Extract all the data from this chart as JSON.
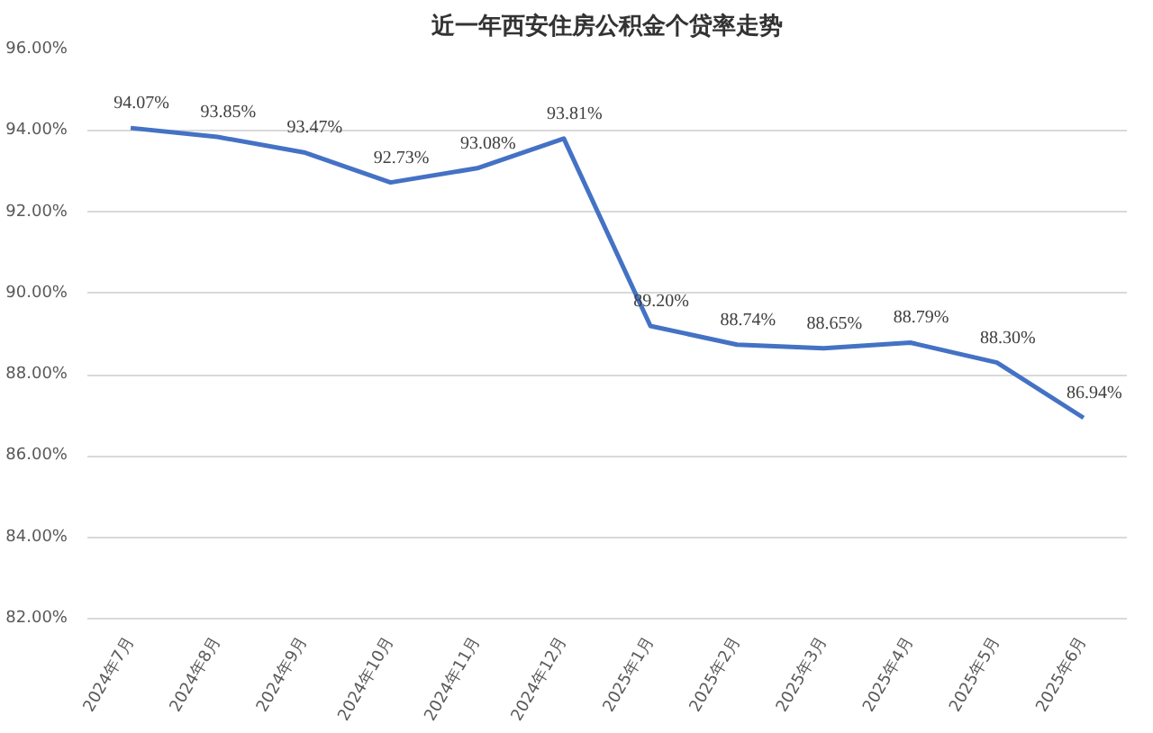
{
  "chart_data": {
    "type": "line",
    "title": "近一年西安住房公积金个贷率走势",
    "categories": [
      "2024年7月",
      "2024年8月",
      "2024年9月",
      "2024年10月",
      "2024年11月",
      "2024年12月",
      "2025年1月",
      "2025年2月",
      "2025年3月",
      "2025年4月",
      "2025年5月",
      "2025年6月"
    ],
    "series": [
      {
        "color": "#4472c4",
        "values": [
          94.07,
          93.85,
          93.47,
          92.73,
          93.08,
          93.81,
          89.2,
          88.74,
          88.65,
          88.79,
          88.3,
          86.94
        ],
        "value_labels": [
          "94.07%",
          "93.85%",
          "93.47%",
          "92.73%",
          "93.08%",
          "93.81%",
          "89.20%",
          "88.74%",
          "88.65%",
          "88.79%",
          "88.30%",
          "86.94%"
        ]
      }
    ],
    "ylim": [
      82,
      96
    ],
    "yticks": [
      {
        "value": 82,
        "label": "82.00%"
      },
      {
        "value": 84,
        "label": "84.00%"
      },
      {
        "value": 86,
        "label": "86.00%"
      },
      {
        "value": 88,
        "label": "88.00%"
      },
      {
        "value": 90,
        "label": "90.00%"
      },
      {
        "value": 92,
        "label": "92.00%"
      },
      {
        "value": 94,
        "label": "94.00%"
      },
      {
        "value": 96,
        "label": "96.00%"
      }
    ],
    "grid": "y",
    "marker": "none",
    "line_style": "solid"
  }
}
